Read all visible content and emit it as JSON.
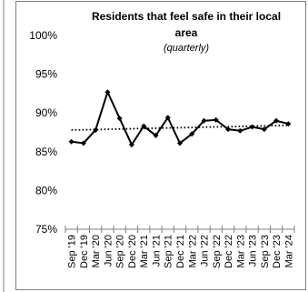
{
  "chart_data": {
    "type": "line",
    "title_line1": "Residents that feel safe in their local",
    "title_line2": "area",
    "subtitle": "(quarterly)",
    "xlabel": "",
    "ylabel": "",
    "ylim": [
      75,
      100
    ],
    "yticks": [
      75,
      80,
      85,
      90,
      95,
      100
    ],
    "ytick_labels": [
      "75%",
      "80%",
      "85%",
      "90%",
      "95%",
      "100%"
    ],
    "grid": false,
    "legend": "none",
    "categories": [
      "Sep '19",
      "Dec '19",
      "Mar '20",
      "Jun '20",
      "Sep '20",
      "Dec '20",
      "Mar '21",
      "Jun '21",
      "Sep '21",
      "Dec '21",
      "Mar '22",
      "Jun '22",
      "Sep '22",
      "Dec '22",
      "Mar '23",
      "Jun '23",
      "Sep '23",
      "Dec '23",
      "Mar '24"
    ],
    "series": [
      {
        "values": [
          86.3,
          86.1,
          87.8,
          92.7,
          89.3,
          85.9,
          88.3,
          87.1,
          89.4,
          86.1,
          87.3,
          89.0,
          89.1,
          87.9,
          87.7,
          88.2,
          87.9,
          89.0,
          88.6
        ],
        "color": "#000000",
        "marker": "diamond"
      }
    ],
    "trendline": {
      "style": "dotted",
      "start": 87.8,
      "end": 88.4,
      "color": "#000000"
    },
    "frame_color": "#7f7f7f"
  }
}
